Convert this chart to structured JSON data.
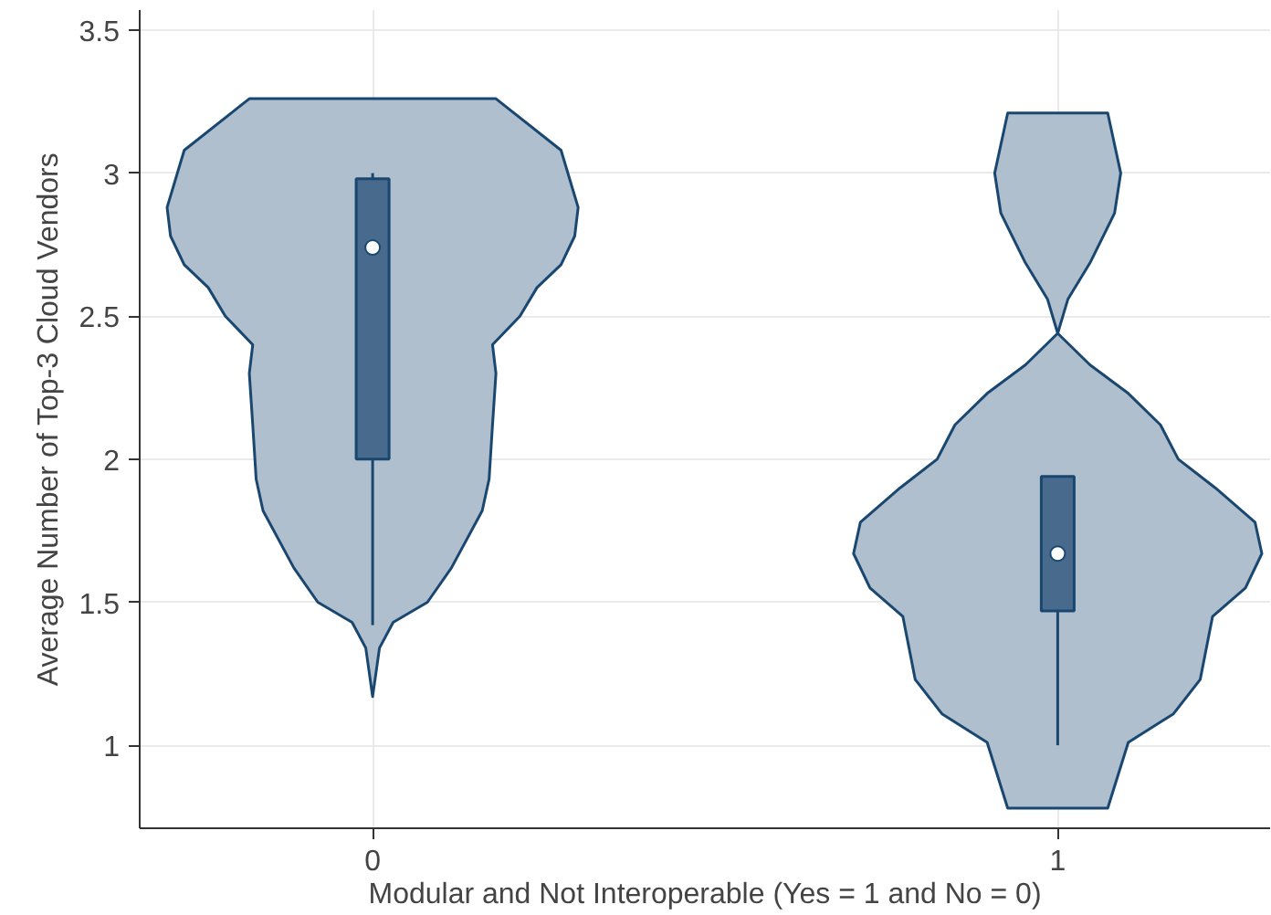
{
  "chart_data": {
    "type": "box",
    "xlabel": "Modular and Not Interoperable (Yes = 1 and No = 0)",
    "ylabel": "Average Number of Top-3 Cloud Vendors",
    "x": [
      0,
      1
    ],
    "xlim": [
      -0.34,
      1.31
    ],
    "xticks": [
      0,
      1
    ],
    "ylim": [
      0.71,
      3.57
    ],
    "yticks": [
      1,
      1.5,
      2,
      2.5,
      3,
      3.5
    ],
    "grid": true,
    "color": "#486a8c",
    "boxes": [
      {
        "low": 1.42,
        "q1": 2.0,
        "median": 2.74,
        "q3": 2.98,
        "high": 3.0
      },
      {
        "low": 1.0,
        "q1": 1.47,
        "median": 1.67,
        "q3": 1.94,
        "high": 1.94
      }
    ],
    "series": [
      {
        "type": "area",
        "color": "#b0bfce",
        "x": [
          0.18,
          0.275,
          0.3,
          0.295,
          0.275,
          0.24,
          0.215,
          0.175,
          0.18,
          0.175,
          0.17,
          0.16,
          0.115,
          0.08,
          0.03,
          0.01,
          0,
          -0.01,
          -0.03,
          -0.08,
          -0.115,
          -0.16,
          -0.17,
          -0.175,
          -0.18,
          -0.175,
          -0.215,
          -0.24,
          -0.275,
          -0.295,
          -0.3,
          -0.275,
          -0.18
        ],
        "values": [
          3.26,
          3.08,
          2.88,
          2.78,
          2.68,
          2.6,
          2.5,
          2.4,
          2.3,
          2.12,
          1.93,
          1.82,
          1.62,
          1.5,
          1.43,
          1.34,
          1.17,
          1.34,
          1.43,
          1.5,
          1.62,
          1.82,
          1.93,
          2.12,
          2.3,
          2.4,
          2.5,
          2.6,
          2.68,
          2.78,
          2.88,
          3.08,
          3.26
        ]
      },
      {
        "type": "area",
        "color": "#b0bfce",
        "x": [
          1.073,
          1.092,
          1.083,
          1.048,
          1.015,
          1,
          1.047,
          1.103,
          1.15,
          1.176,
          1.23,
          1.288,
          1.298,
          1.274,
          1.226,
          1.208,
          1.169,
          1.103,
          1.073,
          0.927,
          0.897,
          0.831,
          0.792,
          0.774,
          0.726,
          0.702,
          0.712,
          0.77,
          0.824,
          0.85,
          0.897,
          0.953,
          1,
          0.985,
          0.952,
          0.917,
          0.908,
          0.927
        ],
        "values": [
          3.21,
          3.0,
          2.86,
          2.69,
          2.56,
          2.44,
          2.33,
          2.23,
          2.12,
          2.0,
          1.9,
          1.78,
          1.67,
          1.55,
          1.45,
          1.23,
          1.11,
          1.01,
          0.78,
          0.78,
          1.01,
          1.11,
          1.23,
          1.45,
          1.55,
          1.67,
          1.78,
          1.9,
          2.0,
          2.12,
          2.23,
          2.33,
          2.44,
          2.56,
          2.69,
          2.86,
          3.0,
          3.21
        ]
      }
    ]
  }
}
